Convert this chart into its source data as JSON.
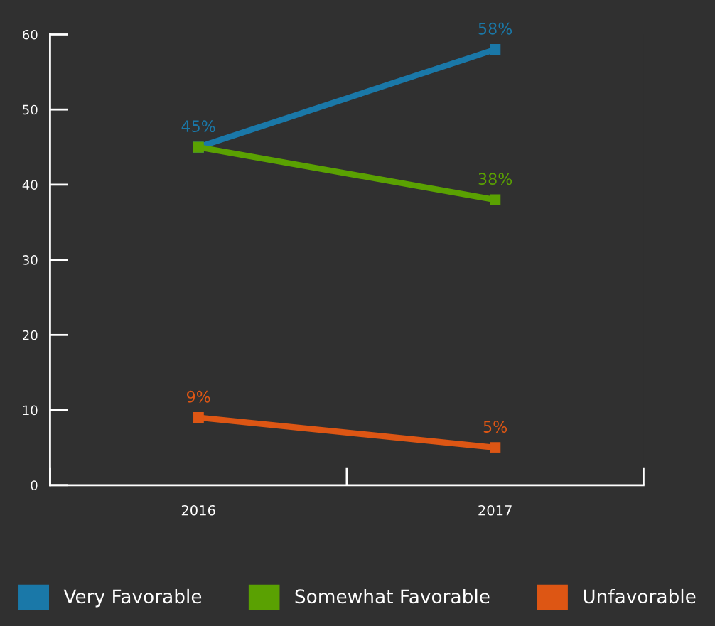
{
  "chart_data": {
    "type": "line",
    "categories": [
      "2016",
      "2017"
    ],
    "series": [
      {
        "name": "Very Favorable",
        "color": "#1a78a8",
        "values": [
          45,
          58
        ],
        "value_labels": [
          "45%",
          "58%"
        ]
      },
      {
        "name": "Somewhat Favorable",
        "color": "#5aa102",
        "values": [
          45,
          38
        ],
        "value_labels": [
          null,
          "38%"
        ]
      },
      {
        "name": "Unfavorable",
        "color": "#dd5614",
        "values": [
          9,
          5
        ],
        "value_labels": [
          "9%",
          "5%"
        ]
      }
    ],
    "ylim": [
      0,
      60
    ],
    "yticks": [
      0,
      10,
      20,
      30,
      40,
      50,
      60
    ],
    "grid": false,
    "legend": "bottom",
    "marker": "square",
    "line_style": "solid"
  }
}
